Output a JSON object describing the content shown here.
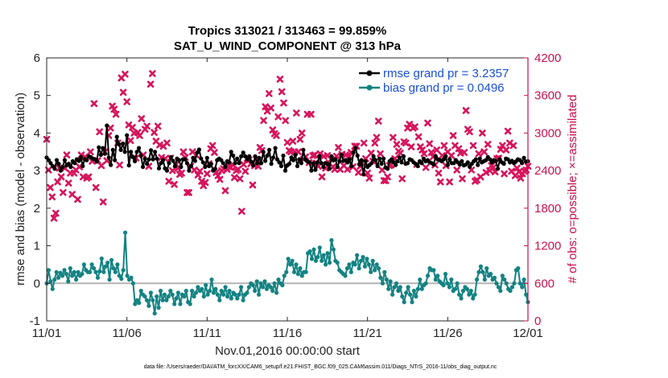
{
  "colors": {
    "rmse": "#000000",
    "bias": "#138282",
    "obs": "#d6145c",
    "right_axis": "#c8104f",
    "legend_text": "#1a4fd6",
    "zero_line": "#b4b4b4"
  },
  "footer": "data file: /Users/raeder/DAI/ATM_forcXX/CAM6_setup/f.e21.FHIST_BGC.f09_025.CAM6assim.011/Diags_NTrS_2016-11/obs_diag_output.nc",
  "chart_data": {
    "type": "line",
    "title": "Tropics 313021 / 313463 = 99.859%",
    "subtitle": "SAT_U_WIND_COMPONENT @ 313 hPa",
    "xlabel": "Nov.01,2016 00:00:00 start",
    "ylabel": "rmse and bias (model - observation)",
    "y2label": "# of obs: o=possible; ×=assimilated",
    "xlim": [
      0,
      30
    ],
    "ylim": [
      -1,
      6
    ],
    "y2lim": [
      0,
      4200
    ],
    "xticks": [
      0,
      5,
      10,
      15,
      20,
      25,
      30
    ],
    "xtick_labels": [
      "11/01",
      "11/06",
      "11/11",
      "11/16",
      "11/21",
      "11/26",
      "12/01"
    ],
    "yticks": [
      -1,
      0,
      1,
      2,
      3,
      4,
      5,
      6
    ],
    "ytick_labels": [
      "-1",
      "0",
      "1",
      "2",
      "3",
      "4",
      "5",
      "6"
    ],
    "y2ticks": [
      0,
      600,
      1200,
      1800,
      2400,
      3000,
      3600,
      4200
    ],
    "y2tick_labels": [
      "0",
      "600",
      "1200",
      "1800",
      "2400",
      "3000",
      "3600",
      "4200"
    ],
    "series": [
      {
        "name": "rmse",
        "legend": "rmse grand pr = 3.2357",
        "values": [
          3.35,
          3.28,
          3.2,
          3.12,
          3.05,
          3.28,
          3.18,
          3.0,
          3.1,
          3.28,
          3.14,
          3.18,
          3.1,
          3.25,
          3.2,
          3.3,
          3.26,
          3.36,
          3.12,
          3.3,
          3.28,
          3.38,
          3.36,
          3.32,
          3.3,
          3.24,
          3.62,
          3.42,
          3.6,
          3.45,
          4.2,
          3.35,
          3.15,
          3.55,
          3.28,
          3.9,
          3.7,
          3.55,
          3.72,
          3.5,
          3.94,
          3.14,
          3.5,
          3.36,
          3.25,
          3.5,
          3.6,
          3.4,
          3.1,
          3.32,
          3.18,
          3.3,
          3.54,
          3.3,
          3.5,
          3.32,
          3.06,
          3.2,
          3.28,
          3.06,
          3.0,
          3.2,
          3.36,
          3.26,
          3.12,
          3.32,
          3.28,
          3.1,
          3.3,
          3.3,
          3.2,
          3.0,
          3.12,
          3.34,
          3.26,
          3.48,
          3.56,
          3.32,
          3.22,
          3.1,
          3.34,
          3.12,
          3.18,
          3.0,
          3.05,
          3.28,
          3.32,
          3.28,
          3.2,
          3.1,
          3.25,
          3.22,
          3.5,
          3.4,
          3.2,
          3.32,
          3.2,
          3.38,
          3.48,
          3.38,
          3.3,
          3.38,
          3.24,
          3.14,
          3.38,
          3.2,
          3.34,
          3.2,
          3.5,
          3.26,
          3.4,
          3.55,
          3.18,
          3.35,
          3.6,
          3.3,
          3.22,
          3.12,
          3.4,
          3.0,
          3.14,
          3.18,
          3.35,
          3.28,
          3.42,
          3.12,
          3.3,
          3.2,
          3.55,
          3.3,
          3.25,
          3.22,
          3.0,
          3.2,
          3.02,
          3.22,
          3.38,
          3.2,
          3.1,
          3.2,
          3.18,
          3.05,
          3.38,
          3.28,
          3.3,
          3.1,
          3.25,
          3.42,
          3.26,
          3.28,
          3.22,
          3.3,
          3.12,
          3.48,
          3.6,
          3.4,
          3.16,
          3.28,
          2.9,
          3.25,
          3.1,
          3.15,
          3.2,
          3.38,
          3.28,
          3.12,
          3.32,
          3.18,
          3.32,
          3.08,
          3.05,
          3.25,
          3.3,
          3.22,
          3.15,
          3.25,
          3.35,
          3.22,
          3.38,
          3.18,
          3.2,
          3.3,
          3.28,
          3.22,
          3.18,
          3.12,
          3.25,
          3.2,
          3.32,
          3.25,
          3.28,
          3.22,
          3.2,
          3.16,
          3.38,
          3.3,
          3.28,
          3.25,
          3.3,
          3.38,
          3.15,
          3.3,
          3.2,
          3.2,
          3.28,
          3.22,
          3.16,
          3.25,
          3.14,
          3.16,
          3.22,
          3.1,
          3.18,
          3.25,
          3.3,
          3.15,
          3.32,
          3.22,
          3.25,
          3.28,
          3.36,
          3.3,
          3.22,
          3.28,
          3.25,
          3.05,
          3.3,
          3.22,
          3.18,
          3.32,
          3.3,
          3.22,
          3.26,
          3.2,
          3.24,
          3.3,
          3.28,
          3.2,
          3.34,
          3.24,
          3.25
        ]
      },
      {
        "name": "bias",
        "legend": "bias grand pr = 0.0496",
        "values": [
          0.0,
          0.35,
          0.05,
          -0.15,
          0.1,
          0.3,
          0.15,
          0.28,
          0.2,
          0.35,
          0.25,
          0.05,
          0.4,
          0.2,
          0.3,
          0.1,
          0.3,
          0.2,
          0.25,
          0.5,
          0.35,
          0.3,
          0.3,
          0.5,
          0.4,
          0.3,
          0.15,
          0.32,
          0.66,
          0.3,
          0.45,
          0.55,
          0.1,
          0.62,
          0.4,
          0.3,
          0.5,
          0.2,
          0.12,
          0.35,
          1.35,
          0.2,
          0.1,
          0.15,
          0.0,
          -0.55,
          -0.45,
          -0.52,
          -0.2,
          -0.3,
          -0.35,
          -0.45,
          -0.6,
          -0.25,
          -0.45,
          -0.8,
          -0.35,
          -0.65,
          -0.2,
          -0.45,
          -0.3,
          -0.45,
          -0.35,
          -0.2,
          -0.3,
          -0.55,
          -0.4,
          -0.25,
          -0.55,
          -0.3,
          -0.35,
          -0.2,
          -0.5,
          -0.55,
          -0.2,
          -0.35,
          -0.25,
          -0.1,
          -0.2,
          -0.15,
          -0.35,
          -0.05,
          -0.3,
          -0.2,
          0.1,
          -0.25,
          -0.15,
          -0.3,
          -0.45,
          -0.2,
          -0.3,
          -0.1,
          -0.35,
          -0.2,
          -0.4,
          -0.25,
          -0.3,
          -0.4,
          -0.3,
          -0.1,
          -0.45,
          -0.3,
          -0.25,
          -0.1,
          0.0,
          -0.05,
          -0.2,
          0.05,
          -0.3,
          0.0,
          -0.1,
          0.05,
          -0.15,
          -0.05,
          -0.1,
          -0.2,
          0.0,
          -0.25,
          0.1,
          0.0,
          -0.05,
          0.2,
          0.3,
          0.65,
          0.5,
          0.6,
          0.3,
          0.5,
          0.25,
          0.4,
          0.2,
          0.3,
          0.3,
          0.8,
          0.85,
          0.65,
          0.9,
          0.6,
          0.7,
          0.95,
          0.6,
          0.75,
          0.5,
          0.8,
          0.55,
          1.15,
          0.9,
          0.6,
          0.55,
          0.35,
          0.3,
          0.25,
          0.2,
          0.4,
          0.5,
          0.3,
          0.55,
          0.5,
          0.75,
          0.4,
          0.6,
          0.7,
          0.45,
          0.65,
          0.5,
          0.3,
          0.6,
          0.35,
          0.5,
          0.4,
          0.15,
          0.0,
          0.3,
          0.1,
          -0.15,
          0.05,
          -0.3,
          -0.1,
          0.0,
          -0.2,
          -0.1,
          -0.35,
          -0.5,
          -0.25,
          -0.1,
          -0.3,
          -0.5,
          -0.2,
          -0.35,
          -0.15,
          0.1,
          -0.15,
          -0.05,
          0.0,
          0.2,
          0.4,
          0.35,
          0.35,
          0.1,
          0.2,
          0.05,
          0.0,
          -0.05,
          0.25,
          0.0,
          -0.1,
          0.1,
          -0.2,
          -0.15,
          0.0,
          -0.3,
          -0.4,
          -0.2,
          -0.1,
          -0.15,
          -0.3,
          -0.2,
          -0.4,
          -0.3,
          0.1,
          0.3,
          0.45,
          0.3,
          0.1,
          0.4,
          0.2,
          0.25,
          0.1,
          0.15,
          0.0,
          -0.1,
          -0.2,
          0.2,
          0.1,
          0.0,
          -0.15,
          -0.2,
          -0.1,
          0.0,
          0.35,
          0.4,
          0.0,
          -0.1,
          0.1,
          -0.3,
          -0.5
        ]
      },
      {
        "name": "obs_assimilated",
        "axis": "right",
        "marker": "x",
        "values": [
          2900,
          2410,
          2130,
          1980,
          1640,
          1720,
          2220,
          2440,
          2300,
          2050,
          2440,
          2650,
          2200,
          2360,
          2020,
          2360,
          2410,
          1940,
          2460,
          2650,
          2300,
          2620,
          2280,
          2300,
          2700,
          2550,
          3470,
          2130,
          2560,
          3020,
          2480,
          1900,
          2700,
          2560,
          2960,
          3080,
          3430,
          3380,
          3300,
          2840,
          2490,
          3880,
          3650,
          3940,
          3500,
          3130,
          2880,
          3090,
          3000,
          2600,
          3010,
          2960,
          3230,
          2650,
          3060,
          3110,
          2470,
          3780,
          3950,
          3010,
          2870,
          3110,
          2810,
          2610,
          2790,
          2590,
          2840,
          2230,
          2600,
          2400,
          2180,
          2500,
          2440,
          2340,
          2360,
          2700,
          2610,
          2050,
          2050,
          2470,
          2700,
          2410,
          2650,
          2330,
          2390,
          2230,
          2160,
          2210,
          2350,
          2510,
          2750,
          2800,
          2690,
          2370,
          2320,
          2260,
          2400,
          2430,
          2080,
          2420,
          2460,
          2450,
          2500,
          2290,
          2400,
          2420,
          2270,
          1750,
          2500,
          2390,
          2590,
          2570,
          2510,
          2170,
          2480,
          2580,
          2470,
          2770,
          2720,
          3200,
          3420,
          3350,
          3630,
          3400,
          3050,
          2990,
          2960,
          3260,
          3860,
          3660,
          3480,
          3200,
          2850,
          2720,
          2700,
          2870,
          2700,
          3320,
          2700,
          2900,
          3000,
          2580,
          2620,
          3300,
          2530,
          3300,
          2640,
          2650,
          2520,
          2470,
          2670,
          2300,
          2630,
          2440,
          2640,
          2520,
          2580,
          2460,
          2420,
          2630,
          2770,
          2420,
          2660,
          2480,
          2650,
          2420,
          2630,
          2690,
          2460,
          2790,
          2790,
          2370,
          2470,
          2520,
          2840,
          2590,
          2360,
          2280,
          2680,
          2550,
          2840,
          2930,
          3190,
          2670,
          2410,
          2240,
          2240,
          2300,
          2480,
          2490,
          2930,
          2590,
          2820,
          2710,
          2680,
          2270,
          2860,
          2840,
          3080,
          3140,
          2780,
          3080,
          3100,
          2500,
          2940,
          2780,
          2730,
          2670,
          2450,
          3160,
          2830,
          2690,
          2620,
          2490,
          2730,
          2360,
          2220,
          2640,
          2800,
          2480,
          2700,
          2220,
          2640,
          2960,
          2800,
          2410,
          2750,
          2680,
          2270,
          2690,
          3360,
          3060,
          3020,
          2410,
          2800,
          2230,
          2250,
          2670,
          2300,
          3000,
          2700,
          2370,
          2820,
          2400,
          2480,
          2450,
          2380,
          2590,
          2600,
          2740,
          2800,
          2350,
          2730,
          3030,
          2840,
          2390,
          2800,
          2320,
          2440,
          2380,
          2280,
          2350,
          2390,
          2410,
          2470
        ]
      }
    ]
  }
}
